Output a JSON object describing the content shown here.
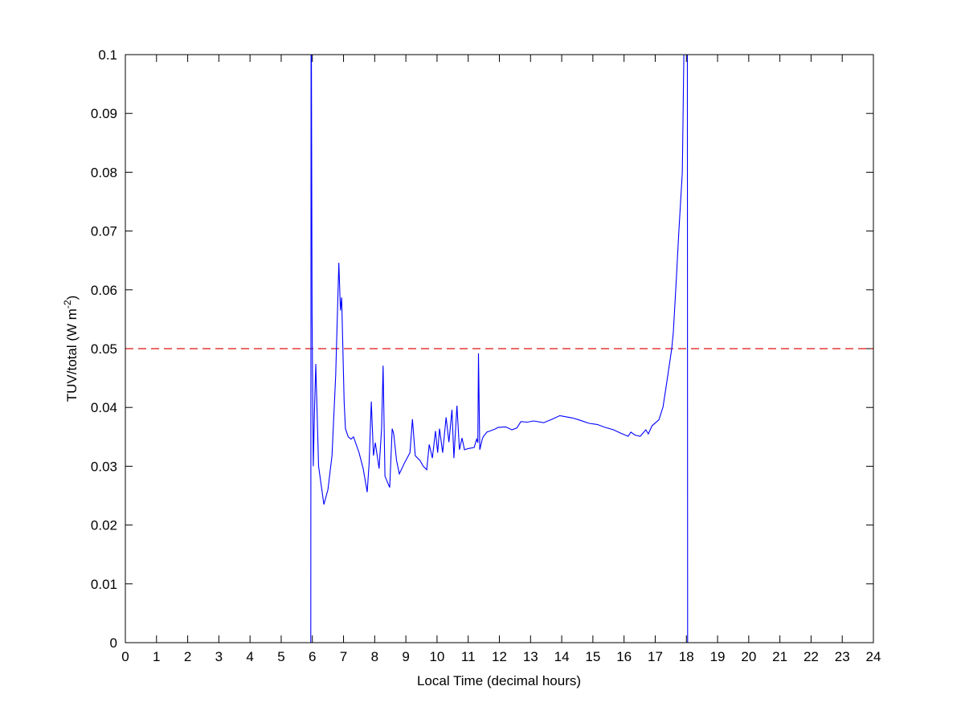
{
  "chart_data": {
    "type": "line",
    "title": "",
    "xlabel": "Local Time (decimal hours)",
    "ylabel_main": "TUV/total (W m",
    "ylabel_sup": "-2",
    "ylabel_close": ")",
    "xlim": [
      0,
      24
    ],
    "ylim": [
      0,
      0.1
    ],
    "xticks": [
      0,
      1,
      2,
      3,
      4,
      5,
      6,
      7,
      8,
      9,
      10,
      11,
      12,
      13,
      14,
      15,
      16,
      17,
      18,
      19,
      20,
      21,
      22,
      23,
      24
    ],
    "yticks": [
      0,
      0.01,
      0.02,
      0.03,
      0.04,
      0.05,
      0.06,
      0.07,
      0.08,
      0.09,
      0.1
    ],
    "ytick_labels": [
      "0",
      "0.01",
      "0.02",
      "0.03",
      "0.04",
      "0.05",
      "0.06",
      "0.07",
      "0.08",
      "0.09",
      "0.1"
    ],
    "grid": false,
    "colors": {
      "series": "#0000ff",
      "threshold": "#e01010"
    },
    "threshold": {
      "y": 0.05,
      "style": "dashed"
    },
    "series": [
      {
        "x": [
          0,
          5.9,
          5.95,
          5.96,
          5.99,
          6.03,
          6.07,
          6.11,
          6.2,
          6.37,
          6.5,
          6.63,
          6.75,
          6.85,
          6.9,
          6.94,
          7.02,
          7.06,
          7.15,
          7.24,
          7.32,
          7.5,
          7.63,
          7.76,
          7.82,
          7.89,
          7.96,
          8.02,
          8.14,
          8.22,
          8.27,
          8.33,
          8.48,
          8.56,
          8.61,
          8.7,
          8.79,
          8.95,
          9.13,
          9.21,
          9.3,
          9.45,
          9.56,
          9.67,
          9.75,
          9.85,
          9.95,
          10.02,
          10.08,
          10.18,
          10.29,
          10.38,
          10.48,
          10.54,
          10.64,
          10.72,
          10.8,
          10.88,
          11.0,
          11.19,
          11.27,
          11.31,
          11.33,
          11.37,
          11.45,
          11.49,
          11.6,
          11.7,
          11.85,
          11.96,
          12.2,
          12.4,
          12.56,
          12.69,
          12.9,
          13.1,
          13.42,
          13.7,
          13.94,
          14.15,
          14.36,
          14.6,
          14.88,
          15.14,
          15.4,
          15.66,
          15.9,
          16.13,
          16.22,
          16.35,
          16.52,
          16.7,
          16.78,
          16.9,
          17.12,
          17.25,
          17.38,
          17.53,
          17.58,
          17.68,
          17.76,
          17.87,
          17.92,
          17.96,
          18.03,
          18.04,
          24
        ],
        "y": [
          0,
          0,
          0,
          0.12,
          0.0556,
          0.03,
          0.04,
          0.0474,
          0.03,
          0.0235,
          0.026,
          0.0318,
          0.0455,
          0.0646,
          0.0565,
          0.0587,
          0.041,
          0.0364,
          0.035,
          0.0346,
          0.035,
          0.0323,
          0.0296,
          0.0256,
          0.0305,
          0.041,
          0.0318,
          0.034,
          0.0296,
          0.0364,
          0.0471,
          0.0283,
          0.0264,
          0.0364,
          0.0355,
          0.031,
          0.0287,
          0.0305,
          0.0323,
          0.038,
          0.0318,
          0.031,
          0.03,
          0.0294,
          0.0337,
          0.0314,
          0.036,
          0.0323,
          0.0364,
          0.0323,
          0.0383,
          0.0341,
          0.0396,
          0.0314,
          0.0403,
          0.0328,
          0.0348,
          0.0328,
          0.033,
          0.0332,
          0.0346,
          0.034,
          0.0492,
          0.0328,
          0.0346,
          0.0351,
          0.0358,
          0.036,
          0.0363,
          0.0366,
          0.0367,
          0.0362,
          0.0365,
          0.0376,
          0.0375,
          0.0377,
          0.0374,
          0.038,
          0.0386,
          0.0384,
          0.0382,
          0.0378,
          0.0373,
          0.0371,
          0.0366,
          0.0362,
          0.0356,
          0.0351,
          0.0358,
          0.0353,
          0.0351,
          0.0362,
          0.0355,
          0.0369,
          0.0379,
          0.0401,
          0.0446,
          0.05,
          0.0528,
          0.062,
          0.07,
          0.08,
          0.1,
          0.12,
          0.12,
          0,
          0
        ]
      }
    ]
  }
}
